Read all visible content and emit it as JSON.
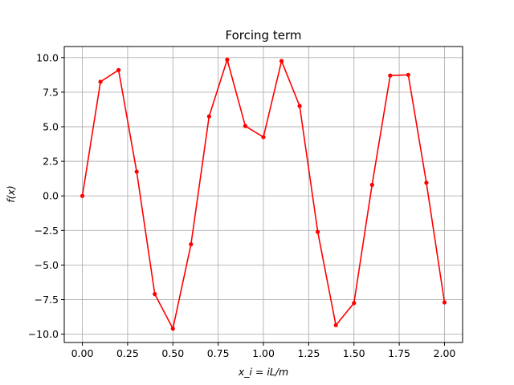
{
  "chart_data": {
    "type": "line",
    "title": "Forcing term",
    "xlabel": "x_i = iL/m",
    "ylabel": "f(x)",
    "xlim": [
      -0.1,
      2.1
    ],
    "ylim": [
      -10.6,
      10.8
    ],
    "grid": true,
    "xticks": [
      0.0,
      0.25,
      0.5,
      0.75,
      1.0,
      1.25,
      1.5,
      1.75,
      2.0
    ],
    "xtick_labels": [
      "0.00",
      "0.25",
      "0.50",
      "0.75",
      "1.00",
      "1.25",
      "1.50",
      "1.75",
      "2.00"
    ],
    "yticks": [
      -10.0,
      -7.5,
      -5.0,
      -2.5,
      0.0,
      2.5,
      5.0,
      7.5,
      10.0
    ],
    "ytick_labels": [
      "−10.0",
      "−7.5",
      "−5.0",
      "−2.5",
      "0.0",
      "2.5",
      "5.0",
      "7.5",
      "10.0"
    ],
    "series": [
      {
        "color": "#ff0000",
        "marker": "dot",
        "x": [
          0.0,
          0.1,
          0.2,
          0.3,
          0.4,
          0.5,
          0.6,
          0.7,
          0.8,
          0.9,
          1.0,
          1.1,
          1.2,
          1.3,
          1.4,
          1.5,
          1.6,
          1.7,
          1.8,
          1.9,
          2.0
        ],
        "y": [
          0.0,
          8.25,
          9.1,
          1.75,
          -7.1,
          -9.6,
          -3.5,
          5.75,
          9.85,
          5.05,
          4.25,
          9.75,
          6.5,
          -2.6,
          -9.35,
          -7.75,
          0.8,
          8.7,
          8.75,
          0.95,
          -7.7
        ]
      }
    ]
  }
}
